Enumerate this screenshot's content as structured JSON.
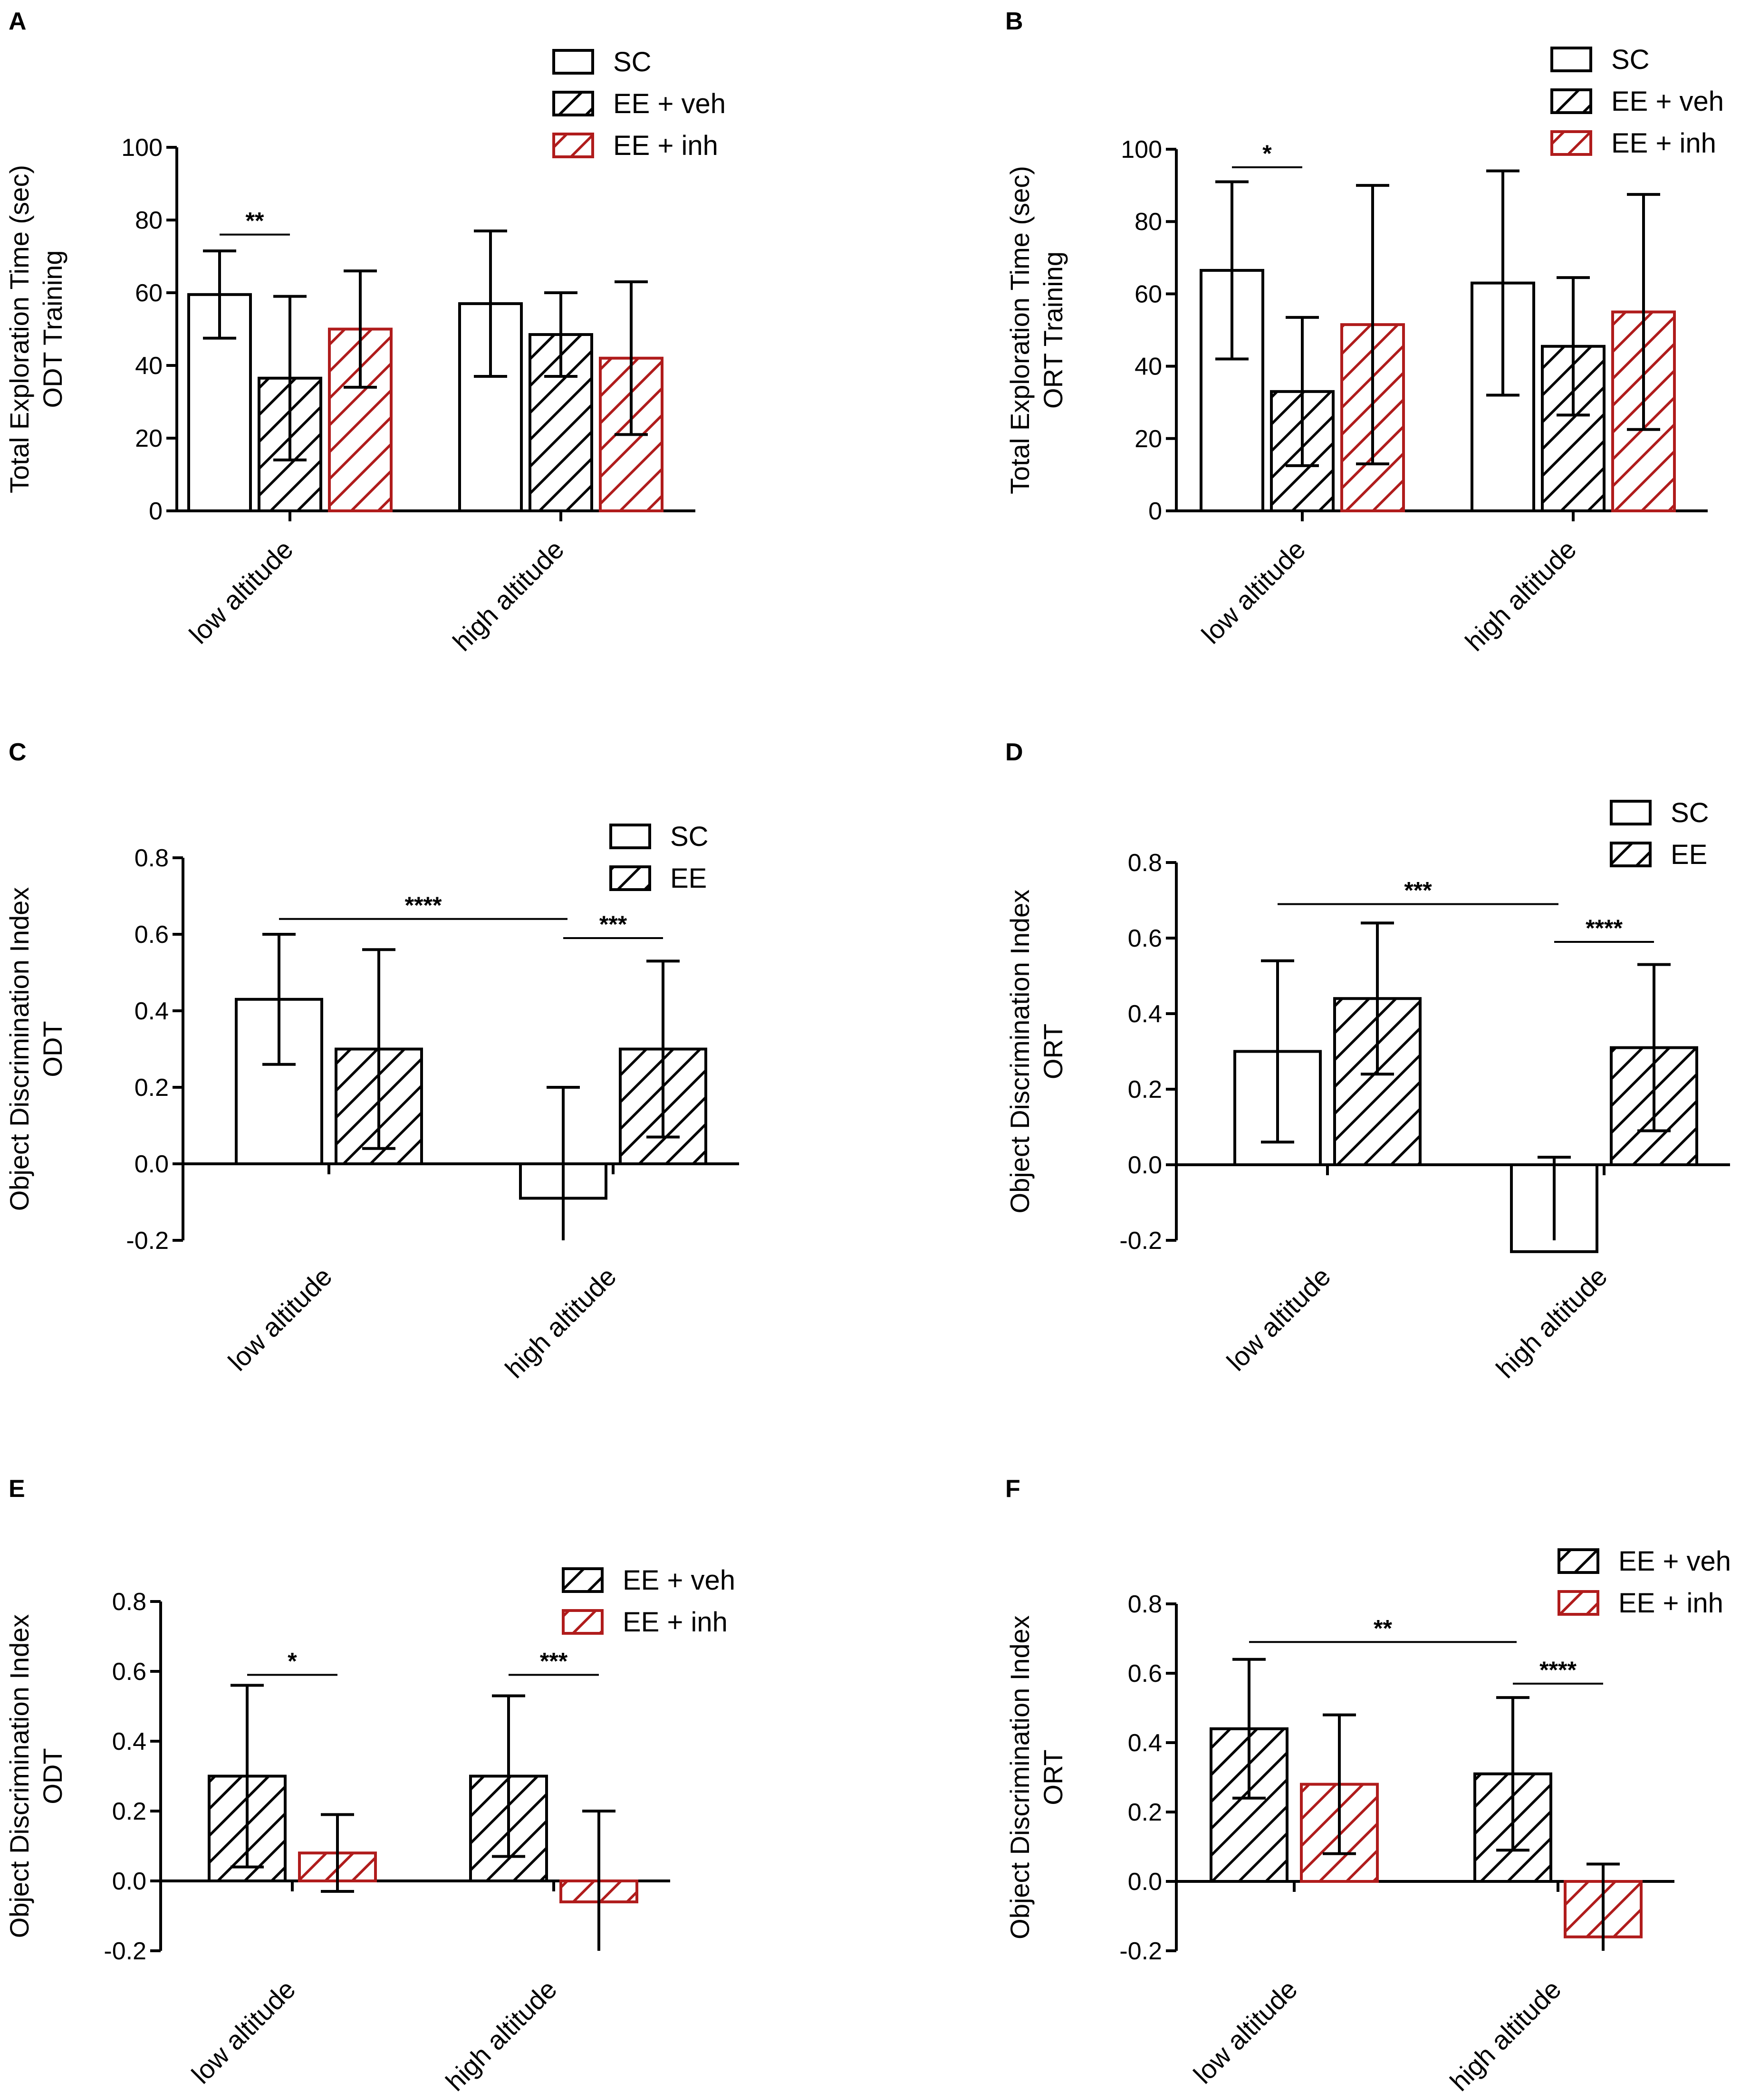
{
  "colors": {
    "black": "#000000",
    "red": "#b01c1c",
    "white": "#ffffff"
  },
  "chart_data": [
    {
      "panel": "A",
      "type": "bar",
      "ylabel": [
        "Total Exploration Time (sec)",
        "ODT Training"
      ],
      "ylim": [
        0,
        100
      ],
      "yticks": [
        "0",
        "20",
        "40",
        "60",
        "80",
        "100"
      ],
      "ytick_values": [
        0,
        20,
        40,
        60,
        80,
        100
      ],
      "categories": [
        "low altitude",
        "high altitude"
      ],
      "series": [
        {
          "name": "SC",
          "style": "open",
          "color": "black",
          "values": [
            59.5,
            57
          ],
          "errors": [
            12,
            20
          ]
        },
        {
          "name": "EE + veh",
          "style": "hatch",
          "color": "black",
          "values": [
            36.5,
            48.5
          ],
          "errors": [
            22.5,
            11.5
          ]
        },
        {
          "name": "EE + inh",
          "style": "hatch",
          "color": "red",
          "values": [
            50,
            42
          ],
          "errors": [
            16,
            21
          ]
        }
      ],
      "legend": [
        "SC",
        "EE + veh",
        "EE + inh"
      ],
      "significance": [
        {
          "category": 0,
          "from": 0,
          "to": 1,
          "y": 76,
          "label": "**"
        }
      ]
    },
    {
      "panel": "B",
      "type": "bar",
      "ylabel": [
        "Total Exploration Time (sec)",
        "ORT Training"
      ],
      "ylim": [
        0,
        100
      ],
      "yticks": [
        "0",
        "20",
        "40",
        "60",
        "80",
        "100"
      ],
      "ytick_values": [
        0,
        20,
        40,
        60,
        80,
        100
      ],
      "categories": [
        "low altitude",
        "high altitude"
      ],
      "series": [
        {
          "name": "SC",
          "style": "open",
          "color": "black",
          "values": [
            66.5,
            63
          ],
          "errors": [
            24.5,
            31
          ]
        },
        {
          "name": "EE + veh",
          "style": "hatch",
          "color": "black",
          "values": [
            33,
            45.5
          ],
          "errors": [
            20.5,
            19
          ]
        },
        {
          "name": "EE + inh",
          "style": "hatch",
          "color": "red",
          "values": [
            51.5,
            55
          ],
          "errors": [
            38.5,
            32.5
          ]
        }
      ],
      "legend": [
        "SC",
        "EE + veh",
        "EE + inh"
      ],
      "significance": [
        {
          "category": 0,
          "from": 0,
          "to": 1,
          "y": 95,
          "label": "*"
        }
      ]
    },
    {
      "panel": "C",
      "type": "bar",
      "ylabel": [
        "Object Discrimination Index",
        "ODT"
      ],
      "ylim": [
        -0.2,
        0.8
      ],
      "yticks": [
        "-0.2",
        "0.0",
        "0.2",
        "0.4",
        "0.6",
        "0.8"
      ],
      "ytick_values": [
        -0.2,
        0,
        0.2,
        0.4,
        0.6,
        0.8
      ],
      "categories": [
        "low altitude",
        "high altitude"
      ],
      "series": [
        {
          "name": "SC",
          "style": "open",
          "color": "black",
          "values": [
            0.43,
            -0.09
          ],
          "errors": [
            0.17,
            0.29
          ]
        },
        {
          "name": "EE",
          "style": "hatch",
          "color": "black",
          "values": [
            0.3,
            0.3
          ],
          "errors": [
            0.26,
            0.23
          ]
        }
      ],
      "legend": [
        "SC",
        "EE"
      ],
      "significance": [
        {
          "span": "across",
          "y": 0.64,
          "label": "****"
        },
        {
          "category": 1,
          "from": 0,
          "to": 1,
          "y": 0.59,
          "label": "***"
        }
      ]
    },
    {
      "panel": "D",
      "type": "bar",
      "ylabel": [
        "Object Discrimination Index",
        "ORT"
      ],
      "ylim": [
        -0.2,
        0.8
      ],
      "yticks": [
        "-0.2",
        "0.0",
        "0.2",
        "0.4",
        "0.6",
        "0.8"
      ],
      "ytick_values": [
        -0.2,
        0,
        0.2,
        0.4,
        0.6,
        0.8
      ],
      "categories": [
        "low altitude",
        "high altitude"
      ],
      "series": [
        {
          "name": "SC",
          "style": "open",
          "color": "black",
          "values": [
            0.3,
            -0.23
          ],
          "errors": [
            0.24,
            0.25
          ]
        },
        {
          "name": "EE",
          "style": "hatch",
          "color": "black",
          "values": [
            0.44,
            0.31
          ],
          "errors": [
            0.2,
            0.22
          ]
        }
      ],
      "legend": [
        "SC",
        "EE"
      ],
      "significance": [
        {
          "span": "across",
          "y": 0.69,
          "label": "***"
        },
        {
          "category": 1,
          "from": 0,
          "to": 1,
          "y": 0.59,
          "label": "****"
        }
      ]
    },
    {
      "panel": "E",
      "type": "bar",
      "ylabel": [
        "Object Discrimination Index",
        "ODT"
      ],
      "ylim": [
        -0.2,
        0.8
      ],
      "yticks": [
        "-0.2",
        "0.0",
        "0.2",
        "0.4",
        "0.6",
        "0.8"
      ],
      "ytick_values": [
        -0.2,
        0,
        0.2,
        0.4,
        0.6,
        0.8
      ],
      "categories": [
        "low altitude",
        "high altitude"
      ],
      "series": [
        {
          "name": "EE + veh",
          "style": "hatch",
          "color": "black",
          "values": [
            0.3,
            0.3
          ],
          "errors": [
            0.26,
            0.23
          ]
        },
        {
          "name": "EE + inh",
          "style": "hatch",
          "color": "red",
          "values": [
            0.08,
            -0.06
          ],
          "errors": [
            0.11,
            0.26
          ]
        }
      ],
      "legend": [
        "EE + veh",
        "EE + inh"
      ],
      "significance": [
        {
          "category": 0,
          "from": 0,
          "to": 1,
          "y": 0.59,
          "label": "*"
        },
        {
          "category": 1,
          "from": 0,
          "to": 1,
          "y": 0.59,
          "label": "***"
        }
      ]
    },
    {
      "panel": "F",
      "type": "bar",
      "ylabel": [
        "Object Discrimination Index",
        "ORT"
      ],
      "ylim": [
        -0.2,
        0.8
      ],
      "yticks": [
        "-0.2",
        "0.0",
        "0.2",
        "0.4",
        "0.6",
        "0.8"
      ],
      "ytick_values": [
        -0.2,
        0,
        0.2,
        0.4,
        0.6,
        0.8
      ],
      "categories": [
        "low altitude",
        "high altitude"
      ],
      "series": [
        {
          "name": "EE + veh",
          "style": "hatch",
          "color": "black",
          "values": [
            0.44,
            0.31
          ],
          "errors": [
            0.2,
            0.22
          ]
        },
        {
          "name": "EE + inh",
          "style": "hatch",
          "color": "red",
          "values": [
            0.28,
            -0.16
          ],
          "errors": [
            0.2,
            0.21
          ]
        }
      ],
      "legend": [
        "EE + veh",
        "EE + inh"
      ],
      "significance": [
        {
          "span": "across",
          "y": 0.69,
          "label": "**"
        },
        {
          "category": 1,
          "from": 0,
          "to": 1,
          "y": 0.57,
          "label": "****"
        }
      ]
    }
  ]
}
